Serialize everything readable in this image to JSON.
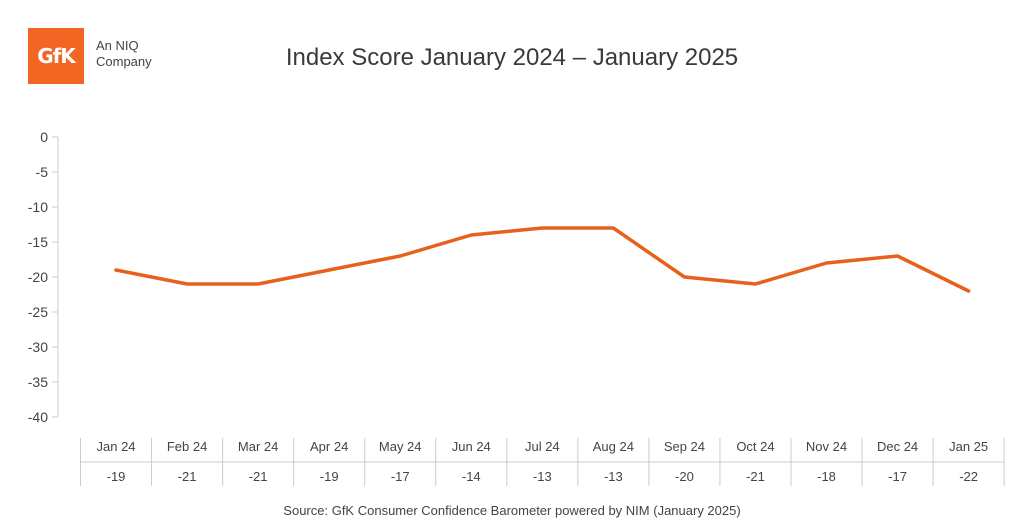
{
  "logo": {
    "text": "GfK",
    "tagline_line1": "An NIQ",
    "tagline_line2": "Company"
  },
  "colors": {
    "line": "#e8611c",
    "brand": "#f26522",
    "grid": "#cccccc",
    "text": "#333333"
  },
  "source": "Source: GfK Consumer Confidence Barometer powered by NIM (January 2025)",
  "chart_data": {
    "type": "line",
    "title": "Index Score January 2024 – January 2025",
    "xlabel": "",
    "ylabel": "",
    "ylim": [
      -40,
      0
    ],
    "yticks": [
      0,
      -5,
      -10,
      -15,
      -20,
      -25,
      -30,
      -35,
      -40
    ],
    "categories": [
      "Jan 24",
      "Feb 24",
      "Mar 24",
      "Apr 24",
      "May 24",
      "Jun 24",
      "Jul 24",
      "Aug 24",
      "Sep 24",
      "Oct 24",
      "Nov 24",
      "Dec 24",
      "Jan 25"
    ],
    "series": [
      {
        "name": "Index Score",
        "values": [
          -19,
          -21,
          -21,
          -19,
          -17,
          -14,
          -13,
          -13,
          -20,
          -21,
          -18,
          -17,
          -22
        ]
      }
    ],
    "table_labels": [
      "-19",
      "-21",
      "-21",
      "-19",
      "-17",
      "-14",
      "-13",
      "-13",
      "-20",
      "-21",
      "-18",
      "-17",
      "-22"
    ],
    "legend": "none"
  }
}
